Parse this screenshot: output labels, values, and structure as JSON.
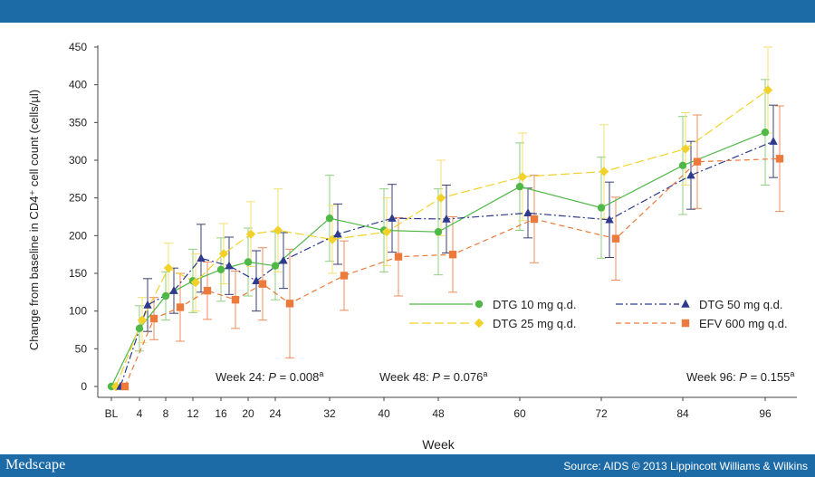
{
  "colors": {
    "bar": "#1c6aa6",
    "dtg10": "#4fb847",
    "dtg25": "#f2d22a",
    "dtg50": "#2e3a8c",
    "efv600": "#ec7a3c",
    "errDtg10": "#8fd07f",
    "errDtg25": "#f3df72",
    "errDtg50": "#3a3f70",
    "errEfv": "#ef8c5d"
  },
  "footer": {
    "brand": "Medscape",
    "source": "Source: AIDS © 2013 Lippincott Williams & Wilkins"
  },
  "chart_data": {
    "type": "line",
    "title": "",
    "xlabel": "Week",
    "ylabel": "Change from baseline in CD4⁺ cell count (cells/µl)",
    "ylim": [
      0,
      450
    ],
    "yticks": [
      0,
      50,
      100,
      150,
      200,
      250,
      300,
      350,
      400,
      450
    ],
    "categories": [
      "BL",
      "4",
      "8",
      "12",
      "16",
      "20",
      "24",
      "32",
      "40",
      "48",
      "60",
      "72",
      "84",
      "96"
    ],
    "grid": false,
    "legend_position": "bottom-right",
    "annotations": [
      {
        "prefix": "Week 24: ",
        "italic": "P",
        "value": " = 0.008",
        "sup": "a"
      },
      {
        "prefix": "Week 48: ",
        "italic": "P",
        "value": " = 0.076",
        "sup": "a"
      },
      {
        "prefix": "Week 96: ",
        "italic": "P",
        "value": " = 0.155",
        "sup": "a"
      }
    ],
    "series": [
      {
        "name": "DTG 10 mg q.d.",
        "marker": "circle",
        "dash": "",
        "values": [
          0,
          77,
          120,
          140,
          155,
          165,
          160,
          223,
          207,
          205,
          265,
          237,
          293,
          337
        ],
        "err": [
          0,
          30,
          32,
          42,
          42,
          45,
          45,
          57,
          55,
          57,
          58,
          67,
          65,
          70
        ]
      },
      {
        "name": "DTG 25 mg q.d.",
        "marker": "diamond",
        "dash": "10,4",
        "values": [
          0,
          88,
          157,
          138,
          176,
          202,
          207,
          195,
          205,
          250,
          278,
          285,
          315,
          393
        ],
        "err": [
          0,
          30,
          33,
          38,
          40,
          43,
          55,
          45,
          45,
          50,
          58,
          62,
          48,
          57
        ]
      },
      {
        "name": "DTG 50 mg q.d.",
        "marker": "triangle",
        "dash": "8,3,2,3",
        "values": [
          0,
          108,
          127,
          170,
          160,
          140,
          167,
          202,
          223,
          222,
          230,
          221,
          280,
          325
        ],
        "err": [
          0,
          35,
          30,
          45,
          38,
          40,
          37,
          40,
          45,
          45,
          33,
          50,
          45,
          48
        ]
      },
      {
        "name": "EFV 600 mg q.d.",
        "marker": "square",
        "dash": "6,4",
        "values": [
          0,
          90,
          105,
          127,
          115,
          136,
          110,
          147,
          172,
          175,
          222,
          196,
          298,
          302
        ],
        "err": [
          0,
          28,
          45,
          38,
          38,
          48,
          72,
          46,
          52,
          50,
          58,
          55,
          62,
          70
        ]
      }
    ]
  }
}
